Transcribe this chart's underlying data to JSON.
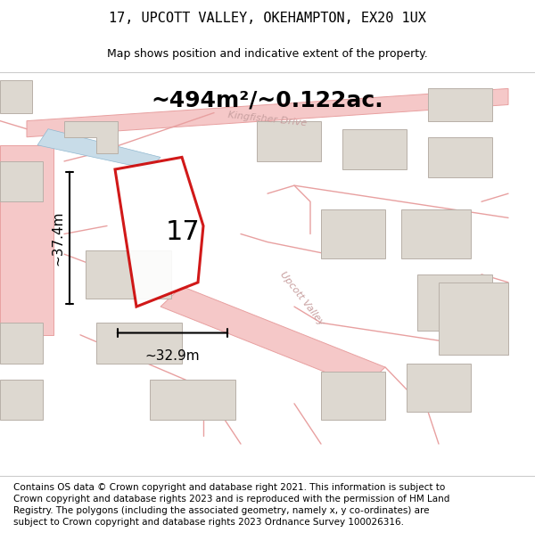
{
  "title": "17, UPCOTT VALLEY, OKEHAMPTON, EX20 1UX",
  "subtitle": "Map shows position and indicative extent of the property.",
  "area_label": "~494m²/~0.122ac.",
  "width_label": "~32.9m",
  "height_label": "~37.4m",
  "plot_label": "17",
  "footer_text": "Contains OS data © Crown copyright and database right 2021. This information is subject to Crown copyright and database rights 2023 and is reproduced with the permission of HM Land Registry. The polygons (including the associated geometry, namely x, y co-ordinates) are subject to Crown copyright and database rights 2023 Ordnance Survey 100026316.",
  "map_bg": "#f0ede8",
  "road_fill": "#f5c8c8",
  "road_edge": "#e8a0a0",
  "road_line": "#e8a0a0",
  "building_fill": "#ddd8d0",
  "building_edge": "#b8b0a8",
  "water_fill": "#c8dce8",
  "water_edge": "#90b8d0",
  "plot_outline": "#cc0000",
  "plot_fill": "#ffffff",
  "title_fontsize": 11,
  "subtitle_fontsize": 9,
  "area_fontsize": 18,
  "label_fontsize": 11,
  "plot_label_fontsize": 22,
  "footer_fontsize": 7.5,
  "road_label_color": "#c8a0a0",
  "road_label_size": 8
}
